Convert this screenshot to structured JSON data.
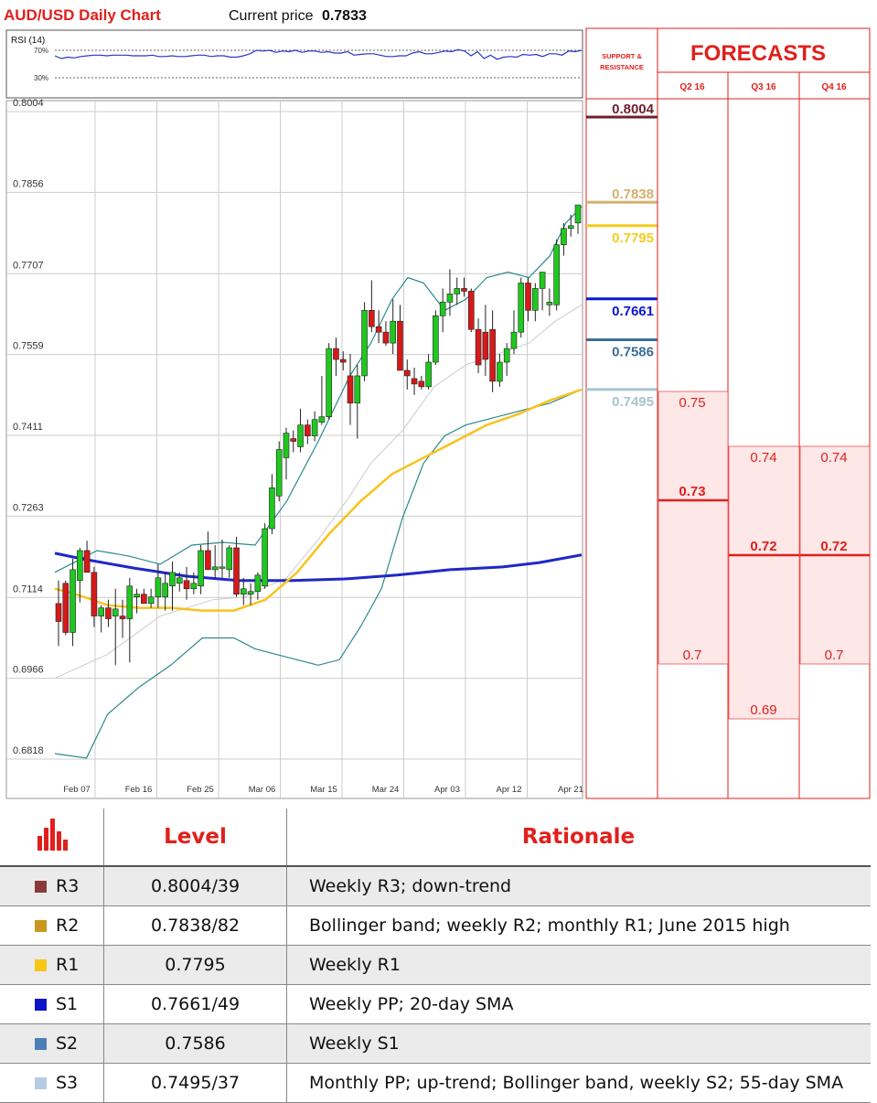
{
  "header": {
    "chart_title": "AUD/USD Daily Chart",
    "price_label": "Current price",
    "price_value": "0.7833"
  },
  "rsi": {
    "title": "RSI (14)",
    "upper_label": "70%",
    "lower_label": "30%",
    "values": [
      62,
      58,
      60,
      59,
      61,
      62,
      63,
      63,
      62,
      63,
      63,
      63,
      62,
      62,
      62,
      63,
      61,
      61,
      62,
      61,
      61,
      62,
      63,
      63,
      61,
      62,
      62,
      60,
      60,
      62,
      65,
      70,
      69,
      70,
      67,
      69,
      68,
      70,
      67,
      69,
      69,
      67,
      68,
      66,
      66,
      68,
      63,
      64,
      65,
      65,
      63,
      61,
      61,
      62,
      62,
      66,
      68,
      65,
      65,
      67,
      69,
      68,
      71,
      69,
      62,
      68,
      58,
      63,
      57,
      60,
      61,
      60,
      64,
      63,
      64,
      61,
      65,
      65,
      63,
      69,
      68,
      70
    ]
  },
  "chart_data": {
    "type": "candlestick",
    "title": "AUD/USD Daily Chart",
    "ylim": [
      0.6818,
      0.8004
    ],
    "yticks": [
      0.8004,
      0.7856,
      0.7707,
      0.7559,
      0.7411,
      0.7263,
      0.7114,
      0.6966,
      0.6818
    ],
    "xticks": [
      "Feb 07",
      "Feb 16",
      "Feb 25",
      "Mar 06",
      "Mar 15",
      "Mar 24",
      "Apr 03",
      "Apr 12",
      "Apr 21"
    ],
    "candles": [
      {
        "o": 0.7103,
        "h": 0.7145,
        "l": 0.7025,
        "c": 0.707
      },
      {
        "o": 0.714,
        "h": 0.7145,
        "l": 0.7045,
        "c": 0.705
      },
      {
        "o": 0.705,
        "h": 0.7185,
        "l": 0.7025,
        "c": 0.7165
      },
      {
        "o": 0.7145,
        "h": 0.7205,
        "l": 0.7105,
        "c": 0.72
      },
      {
        "o": 0.72,
        "h": 0.7218,
        "l": 0.716,
        "c": 0.716
      },
      {
        "o": 0.716,
        "h": 0.717,
        "l": 0.706,
        "c": 0.708
      },
      {
        "o": 0.708,
        "h": 0.71,
        "l": 0.705,
        "c": 0.7095
      },
      {
        "o": 0.7095,
        "h": 0.711,
        "l": 0.706,
        "c": 0.7075
      },
      {
        "o": 0.708,
        "h": 0.713,
        "l": 0.699,
        "c": 0.7093
      },
      {
        "o": 0.708,
        "h": 0.711,
        "l": 0.704,
        "c": 0.7075
      },
      {
        "o": 0.7075,
        "h": 0.715,
        "l": 0.6995,
        "c": 0.7135
      },
      {
        "o": 0.7115,
        "h": 0.713,
        "l": 0.7085,
        "c": 0.712
      },
      {
        "o": 0.712,
        "h": 0.713,
        "l": 0.7105,
        "c": 0.7103
      },
      {
        "o": 0.7103,
        "h": 0.713,
        "l": 0.7095,
        "c": 0.7115
      },
      {
        "o": 0.7115,
        "h": 0.7175,
        "l": 0.7095,
        "c": 0.715
      },
      {
        "o": 0.7115,
        "h": 0.716,
        "l": 0.709,
        "c": 0.714
      },
      {
        "o": 0.7135,
        "h": 0.718,
        "l": 0.709,
        "c": 0.716
      },
      {
        "o": 0.714,
        "h": 0.716,
        "l": 0.7125,
        "c": 0.715
      },
      {
        "o": 0.7145,
        "h": 0.717,
        "l": 0.711,
        "c": 0.713
      },
      {
        "o": 0.713,
        "h": 0.716,
        "l": 0.712,
        "c": 0.714
      },
      {
        "o": 0.7135,
        "h": 0.721,
        "l": 0.712,
        "c": 0.72
      },
      {
        "o": 0.72,
        "h": 0.7235,
        "l": 0.7165,
        "c": 0.7165
      },
      {
        "o": 0.7165,
        "h": 0.721,
        "l": 0.715,
        "c": 0.717
      },
      {
        "o": 0.717,
        "h": 0.722,
        "l": 0.715,
        "c": 0.717
      },
      {
        "o": 0.7165,
        "h": 0.721,
        "l": 0.715,
        "c": 0.7205
      },
      {
        "o": 0.7205,
        "h": 0.7225,
        "l": 0.7115,
        "c": 0.712
      },
      {
        "o": 0.712,
        "h": 0.715,
        "l": 0.71,
        "c": 0.713
      },
      {
        "o": 0.712,
        "h": 0.714,
        "l": 0.71,
        "c": 0.7125
      },
      {
        "o": 0.7125,
        "h": 0.716,
        "l": 0.711,
        "c": 0.7155
      },
      {
        "o": 0.7135,
        "h": 0.725,
        "l": 0.713,
        "c": 0.724
      },
      {
        "o": 0.724,
        "h": 0.734,
        "l": 0.723,
        "c": 0.7315
      },
      {
        "o": 0.73,
        "h": 0.74,
        "l": 0.729,
        "c": 0.7385
      },
      {
        "o": 0.737,
        "h": 0.7425,
        "l": 0.733,
        "c": 0.7415
      },
      {
        "o": 0.7405,
        "h": 0.742,
        "l": 0.738,
        "c": 0.74
      },
      {
        "o": 0.739,
        "h": 0.746,
        "l": 0.738,
        "c": 0.743
      },
      {
        "o": 0.743,
        "h": 0.744,
        "l": 0.7395,
        "c": 0.741
      },
      {
        "o": 0.741,
        "h": 0.7455,
        "l": 0.74,
        "c": 0.744
      },
      {
        "o": 0.7435,
        "h": 0.752,
        "l": 0.743,
        "c": 0.7445
      },
      {
        "o": 0.7445,
        "h": 0.758,
        "l": 0.744,
        "c": 0.757
      },
      {
        "o": 0.757,
        "h": 0.759,
        "l": 0.752,
        "c": 0.755
      },
      {
        "o": 0.755,
        "h": 0.7565,
        "l": 0.753,
        "c": 0.7545
      },
      {
        "o": 0.752,
        "h": 0.756,
        "l": 0.743,
        "c": 0.747
      },
      {
        "o": 0.747,
        "h": 0.754,
        "l": 0.7405,
        "c": 0.752
      },
      {
        "o": 0.752,
        "h": 0.7655,
        "l": 0.751,
        "c": 0.764
      },
      {
        "o": 0.764,
        "h": 0.7695,
        "l": 0.76,
        "c": 0.761
      },
      {
        "o": 0.761,
        "h": 0.764,
        "l": 0.758,
        "c": 0.76
      },
      {
        "o": 0.76,
        "h": 0.762,
        "l": 0.7575,
        "c": 0.758
      },
      {
        "o": 0.758,
        "h": 0.766,
        "l": 0.756,
        "c": 0.762
      },
      {
        "o": 0.762,
        "h": 0.765,
        "l": 0.753,
        "c": 0.753
      },
      {
        "o": 0.753,
        "h": 0.755,
        "l": 0.7495,
        "c": 0.752
      },
      {
        "o": 0.7515,
        "h": 0.7535,
        "l": 0.7485,
        "c": 0.7505
      },
      {
        "o": 0.751,
        "h": 0.752,
        "l": 0.7495,
        "c": 0.75
      },
      {
        "o": 0.75,
        "h": 0.756,
        "l": 0.7495,
        "c": 0.7545
      },
      {
        "o": 0.7545,
        "h": 0.764,
        "l": 0.754,
        "c": 0.763
      },
      {
        "o": 0.763,
        "h": 0.768,
        "l": 0.76,
        "c": 0.7655
      },
      {
        "o": 0.7655,
        "h": 0.7715,
        "l": 0.763,
        "c": 0.767
      },
      {
        "o": 0.767,
        "h": 0.77,
        "l": 0.765,
        "c": 0.768
      },
      {
        "o": 0.768,
        "h": 0.77,
        "l": 0.7665,
        "c": 0.7675
      },
      {
        "o": 0.7675,
        "h": 0.768,
        "l": 0.76,
        "c": 0.7605
      },
      {
        "o": 0.7605,
        "h": 0.7625,
        "l": 0.7525,
        "c": 0.754
      },
      {
        "o": 0.76,
        "h": 0.765,
        "l": 0.752,
        "c": 0.755
      },
      {
        "o": 0.7605,
        "h": 0.764,
        "l": 0.749,
        "c": 0.751
      },
      {
        "o": 0.751,
        "h": 0.756,
        "l": 0.75,
        "c": 0.7545
      },
      {
        "o": 0.7545,
        "h": 0.758,
        "l": 0.752,
        "c": 0.757
      },
      {
        "o": 0.757,
        "h": 0.764,
        "l": 0.756,
        "c": 0.76
      },
      {
        "o": 0.76,
        "h": 0.77,
        "l": 0.759,
        "c": 0.769
      },
      {
        "o": 0.769,
        "h": 0.77,
        "l": 0.762,
        "c": 0.764
      },
      {
        "o": 0.764,
        "h": 0.769,
        "l": 0.762,
        "c": 0.768
      },
      {
        "o": 0.768,
        "h": 0.771,
        "l": 0.764,
        "c": 0.771
      },
      {
        "o": 0.765,
        "h": 0.768,
        "l": 0.763,
        "c": 0.7655
      },
      {
        "o": 0.765,
        "h": 0.777,
        "l": 0.764,
        "c": 0.776
      },
      {
        "o": 0.776,
        "h": 0.78,
        "l": 0.774,
        "c": 0.779
      },
      {
        "o": 0.779,
        "h": 0.7815,
        "l": 0.7775,
        "c": 0.7795
      },
      {
        "o": 0.78,
        "h": 0.783,
        "l": 0.778,
        "c": 0.7833
      }
    ],
    "sma55": [
      [
        0,
        0.713
      ],
      [
        0.04,
        0.712
      ],
      [
        0.1,
        0.71
      ],
      [
        0.16,
        0.7095
      ],
      [
        0.22,
        0.7095
      ],
      [
        0.28,
        0.709
      ],
      [
        0.34,
        0.709
      ],
      [
        0.4,
        0.711
      ],
      [
        0.46,
        0.716
      ],
      [
        0.52,
        0.723
      ],
      [
        0.58,
        0.729
      ],
      [
        0.64,
        0.734
      ],
      [
        0.7,
        0.737
      ],
      [
        0.76,
        0.74
      ],
      [
        0.82,
        0.743
      ],
      [
        0.88,
        0.745
      ],
      [
        0.94,
        0.7475
      ],
      [
        1.0,
        0.7495
      ]
    ],
    "sma200": [
      [
        0,
        0.7195
      ],
      [
        0.05,
        0.7185
      ],
      [
        0.15,
        0.7168
      ],
      [
        0.25,
        0.7153
      ],
      [
        0.35,
        0.7145
      ],
      [
        0.45,
        0.7145
      ],
      [
        0.55,
        0.7148
      ],
      [
        0.65,
        0.7155
      ],
      [
        0.75,
        0.7165
      ],
      [
        0.85,
        0.717
      ],
      [
        0.92,
        0.7178
      ],
      [
        1.0,
        0.7192
      ]
    ],
    "bb_upper": [
      [
        0,
        0.716
      ],
      [
        0.08,
        0.72
      ],
      [
        0.14,
        0.719
      ],
      [
        0.2,
        0.7175
      ],
      [
        0.26,
        0.721
      ],
      [
        0.32,
        0.7215
      ],
      [
        0.38,
        0.721
      ],
      [
        0.44,
        0.729
      ],
      [
        0.5,
        0.74
      ],
      [
        0.56,
        0.752
      ],
      [
        0.6,
        0.758
      ],
      [
        0.64,
        0.766
      ],
      [
        0.67,
        0.77
      ],
      [
        0.7,
        0.769
      ],
      [
        0.74,
        0.764
      ],
      [
        0.78,
        0.766
      ],
      [
        0.82,
        0.77
      ],
      [
        0.86,
        0.771
      ],
      [
        0.9,
        0.77
      ],
      [
        0.94,
        0.774
      ],
      [
        0.97,
        0.78
      ],
      [
        1.0,
        0.783
      ]
    ],
    "bb_lower": [
      [
        0,
        0.6828
      ],
      [
        0.06,
        0.682
      ],
      [
        0.1,
        0.69
      ],
      [
        0.16,
        0.695
      ],
      [
        0.22,
        0.699
      ],
      [
        0.28,
        0.704
      ],
      [
        0.34,
        0.704
      ],
      [
        0.38,
        0.702
      ],
      [
        0.42,
        0.701
      ],
      [
        0.46,
        0.7
      ],
      [
        0.5,
        0.699
      ],
      [
        0.54,
        0.7
      ],
      [
        0.58,
        0.706
      ],
      [
        0.62,
        0.713
      ],
      [
        0.66,
        0.726
      ],
      [
        0.7,
        0.736
      ],
      [
        0.74,
        0.741
      ],
      [
        0.78,
        0.743
      ],
      [
        0.82,
        0.744
      ],
      [
        0.86,
        0.745
      ],
      [
        0.9,
        0.746
      ],
      [
        0.94,
        0.747
      ],
      [
        1.0,
        0.7495
      ]
    ],
    "bb_mid": [
      [
        0,
        0.6966
      ],
      [
        0.1,
        0.701
      ],
      [
        0.2,
        0.708
      ],
      [
        0.3,
        0.711
      ],
      [
        0.36,
        0.7115
      ],
      [
        0.44,
        0.715
      ],
      [
        0.5,
        0.722
      ],
      [
        0.56,
        0.73
      ],
      [
        0.6,
        0.736
      ],
      [
        0.66,
        0.742
      ],
      [
        0.72,
        0.75
      ],
      [
        0.78,
        0.754
      ],
      [
        0.84,
        0.756
      ],
      [
        0.9,
        0.758
      ],
      [
        0.95,
        0.762
      ],
      [
        1.0,
        0.765
      ]
    ],
    "colors": {
      "up": "#1fc81f",
      "down": "#d51a1a",
      "sma55": "#f7c31c",
      "sma200": "#1f28c8",
      "bb": "#2c8a8a",
      "bb_mid": "#c8c8c8",
      "grid": "#cccccc"
    }
  },
  "support_resistance": {
    "title_line1": "SUPPORT &",
    "title_line2": "RESISTANCE",
    "levels": [
      {
        "label": "0.8004",
        "color": "#6d1f2f"
      },
      {
        "label": "0.7838",
        "color": "#d2b06d"
      },
      {
        "label": "0.7795",
        "color": "#f4cc1c"
      },
      {
        "label": "0.7661",
        "color": "#0a16cf"
      },
      {
        "label": "0.7586",
        "color": "#3c6e96"
      },
      {
        "label": "0.7495",
        "color": "#a7c6cc"
      }
    ]
  },
  "forecasts": {
    "title": "FORECASTS",
    "quarters": [
      "Q2 16",
      "Q3 16",
      "Q4 16"
    ],
    "q2": {
      "high": "0.75",
      "median": "0.73",
      "low": "0.7"
    },
    "q3": {
      "high": "0.74",
      "median": "0.72",
      "low": "0.69"
    },
    "q4": {
      "high": "0.74",
      "median": "0.72",
      "low": "0.7"
    }
  },
  "table": {
    "headers": {
      "level": "Level",
      "rationale": "Rationale"
    },
    "rows": [
      {
        "name": "R3",
        "level": "0.8004/39",
        "rationale": "Weekly R3; down-trend",
        "color": "#8b3a3a"
      },
      {
        "name": "R2",
        "level": "0.7838/82",
        "rationale": "Bollinger band; weekly R2; monthly R1; June 2015 high",
        "color": "#c9981f"
      },
      {
        "name": "R1",
        "level": "0.7795",
        "rationale": "Weekly R1",
        "color": "#f7c617"
      },
      {
        "name": "S1",
        "level": "0.7661/49",
        "rationale": "Weekly PP; 20-day SMA",
        "color": "#0b14c8"
      },
      {
        "name": "S2",
        "level": "0.7586",
        "rationale": "Weekly S1",
        "color": "#4b7fb5"
      },
      {
        "name": "S3",
        "level": "0.7495/37",
        "rationale": "Monthly PP; up-trend; Bollinger band, weekly S2; 55-day SMA",
        "color": "#b6cbe3"
      }
    ]
  }
}
